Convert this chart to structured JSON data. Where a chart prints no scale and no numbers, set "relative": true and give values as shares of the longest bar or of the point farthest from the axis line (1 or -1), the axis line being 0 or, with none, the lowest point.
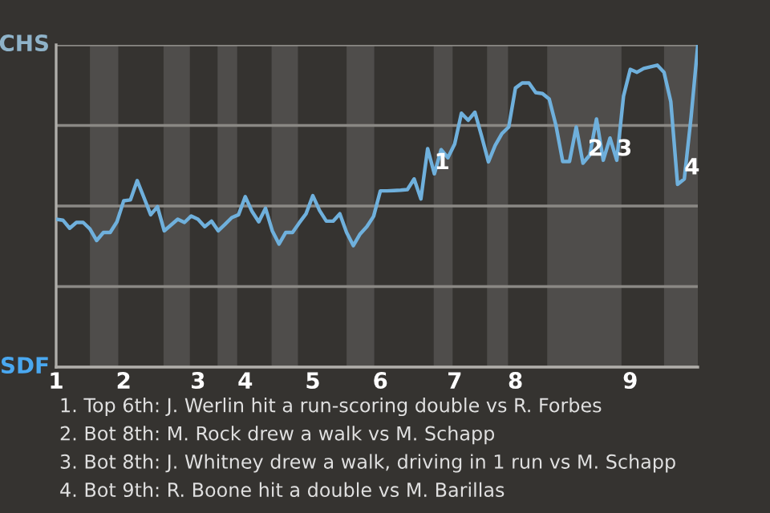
{
  "chart_data": {
    "type": "line",
    "relative": true,
    "categories": [
      "1",
      null,
      null,
      null,
      null,
      null,
      null,
      null,
      null,
      null,
      "2",
      null,
      null,
      null,
      null,
      null,
      null,
      null,
      null,
      null,
      null,
      "3",
      null,
      null,
      null,
      null,
      null,
      null,
      "4",
      null,
      null,
      null,
      null,
      null,
      null,
      null,
      null,
      null,
      "5",
      null,
      null,
      null,
      null,
      null,
      null,
      null,
      null,
      null,
      "6",
      null,
      null,
      null,
      null,
      null,
      null,
      null,
      null,
      null,
      null,
      "7",
      null,
      null,
      null,
      null,
      null,
      null,
      null,
      null,
      "8",
      null,
      null,
      null,
      null,
      null,
      null,
      null,
      null,
      null,
      null,
      null,
      null,
      null,
      null,
      null,
      null,
      "9",
      null,
      null,
      null,
      null,
      null,
      null,
      null,
      null,
      null,
      null
    ],
    "series": [
      {
        "color": "#6fb0dc",
        "values": [
          0.459,
          0.456,
          0.431,
          0.449,
          0.449,
          0.429,
          0.393,
          0.418,
          0.418,
          0.451,
          0.516,
          0.519,
          0.579,
          0.526,
          0.473,
          0.498,
          0.423,
          0.441,
          0.459,
          0.449,
          0.469,
          0.459,
          0.436,
          0.453,
          0.423,
          0.443,
          0.464,
          0.473,
          0.529,
          0.483,
          0.451,
          0.493,
          0.423,
          0.382,
          0.418,
          0.418,
          0.448,
          0.476,
          0.532,
          0.486,
          0.453,
          0.453,
          0.476,
          0.418,
          0.377,
          0.413,
          0.436,
          0.468,
          0.547,
          0.547,
          0.548,
          0.549,
          0.551,
          0.584,
          0.522,
          0.678,
          0.6,
          0.675,
          0.65,
          0.692,
          0.788,
          0.766,
          0.791,
          0.716,
          0.637,
          0.688,
          0.725,
          0.745,
          0.866,
          0.882,
          0.882,
          0.852,
          0.849,
          0.832,
          0.75,
          0.638,
          0.638,
          0.745,
          0.633,
          0.658,
          0.77,
          0.642,
          0.711,
          0.642,
          0.841,
          0.924,
          0.915,
          0.927,
          0.932,
          0.937,
          0.915,
          0.824,
          0.567,
          0.584,
          0.775,
          1
        ],
        "name": null
      }
    ],
    "grid": "y",
    "marker": "none",
    "line_style": "solid",
    "annotations": [
      "CHS",
      "SDF",
      {
        "text": "1",
        "y": 0.6
      },
      {
        "text": "2",
        "y": 0.642
      },
      {
        "text": "3",
        "y": 0.642
      },
      {
        "text": "4",
        "y": 0.584
      },
      "1. Top 6th: J. Werlin hit a run-scoring double vs R. Forbes",
      "2. Bot 8th: M. Rock drew a walk vs M. Schapp",
      "3. Bot 8th: J. Whitney drew a walk, driving in 1 run vs M. Schapp",
      "4. Bot 9th: R. Boone hit a double vs M. Barillas"
    ]
  }
}
